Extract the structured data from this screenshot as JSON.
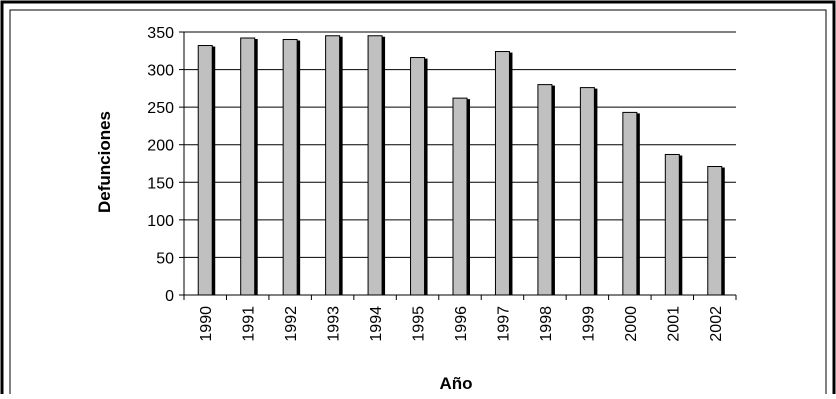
{
  "chart_data": {
    "type": "bar",
    "title": "",
    "xlabel": "Año",
    "ylabel": "Defunciones",
    "categories": [
      "1990",
      "1991",
      "1992",
      "1993",
      "1994",
      "1995",
      "1996",
      "1997",
      "1998",
      "1999",
      "2000",
      "2001",
      "2002"
    ],
    "values": [
      332,
      342,
      340,
      345,
      345,
      316,
      262,
      324,
      280,
      276,
      243,
      187,
      171
    ],
    "ylim": [
      0,
      350
    ],
    "yticks": [
      0,
      50,
      100,
      150,
      200,
      250,
      300,
      350
    ],
    "grid": true,
    "legend": "none",
    "colors": {
      "bar_front": "#c0c0c0",
      "bar_side": "#000000",
      "gridline": "#000000",
      "frame": "#000000"
    }
  }
}
